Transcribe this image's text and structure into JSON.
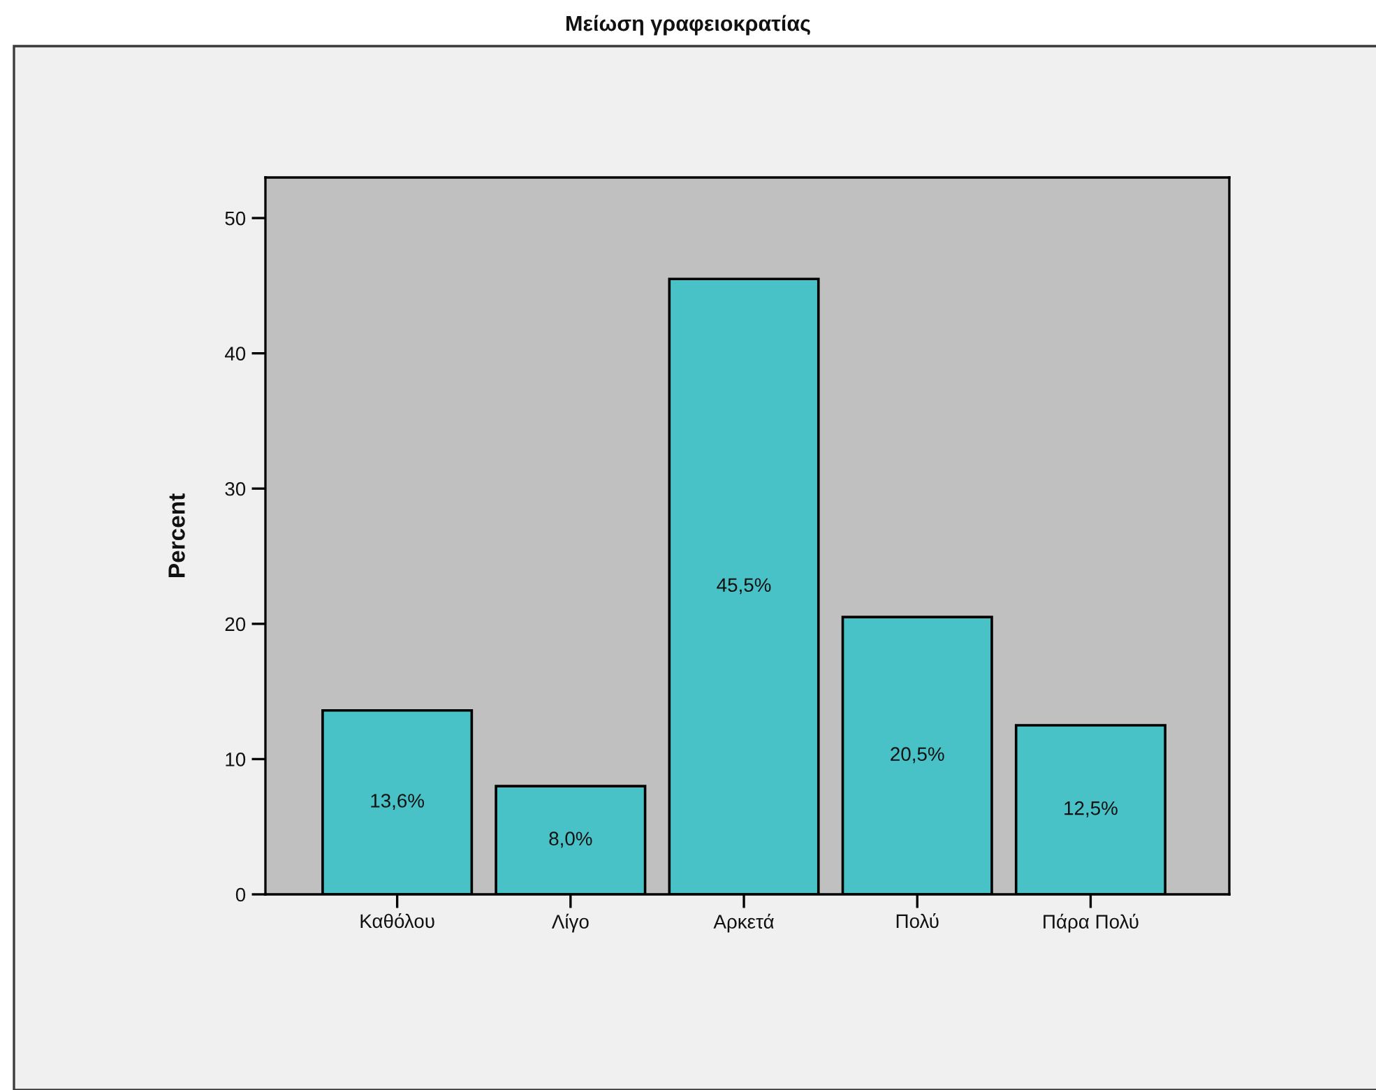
{
  "chart_data": {
    "type": "bar",
    "title": "Μείωση γραφειοκρατίας",
    "ylabel": "Percent",
    "categories": [
      "Καθόλου",
      "Λίγο",
      "Αρκετά",
      "Πολύ",
      "Πάρα Πολύ"
    ],
    "values": [
      13.6,
      8.0,
      45.5,
      20.5,
      12.5
    ],
    "value_labels": [
      "13,6%",
      "8,0%",
      "45,5%",
      "20,5%",
      "12,5%"
    ],
    "color": "#48c2c6",
    "ylim": [
      0,
      53
    ],
    "yticks": [
      0,
      10,
      20,
      30,
      40,
      50
    ]
  }
}
